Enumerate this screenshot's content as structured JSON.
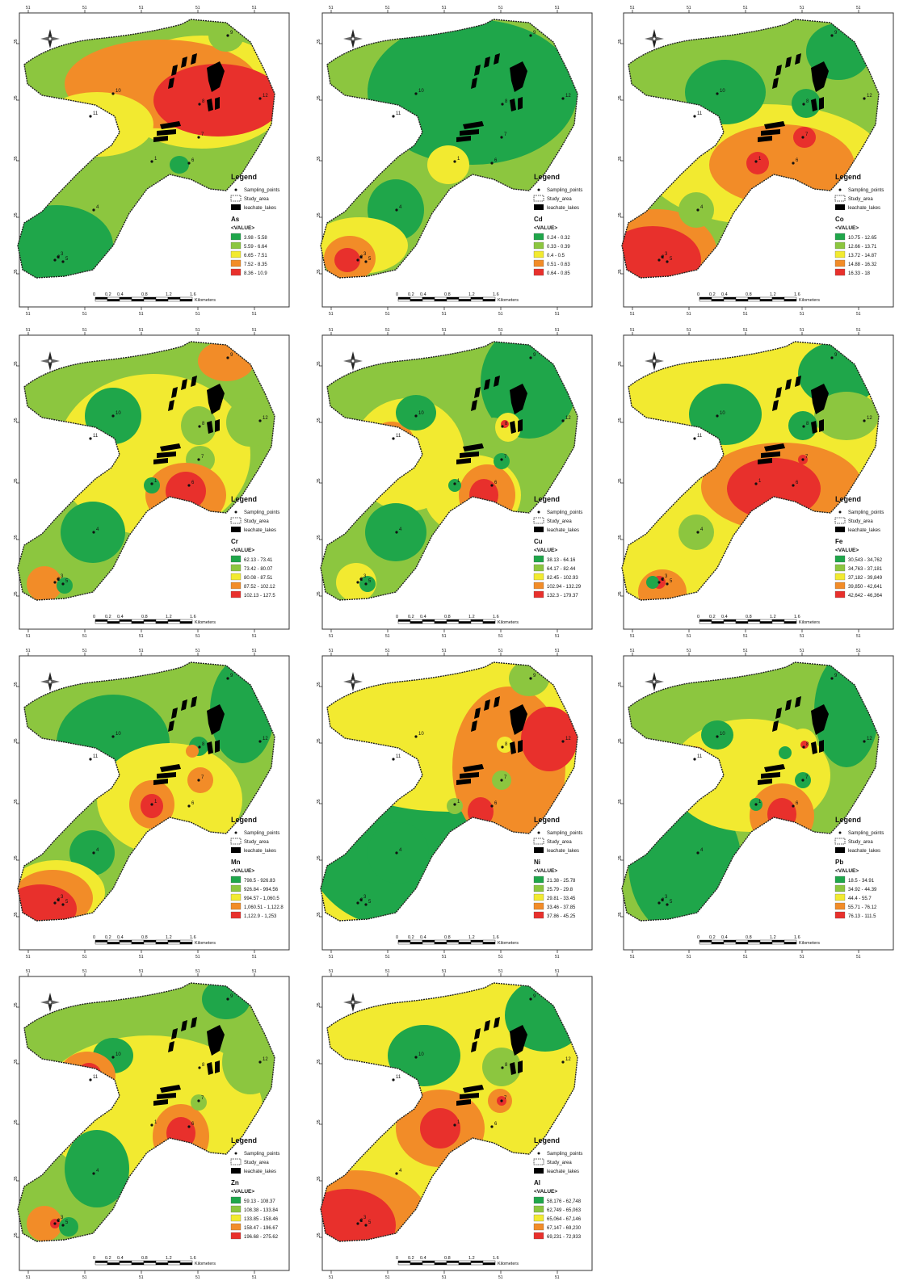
{
  "common": {
    "legend_title": "Legend",
    "legend_sampling": "Sampling_points",
    "legend_study": "Study_area",
    "legend_leachate": "leachate_lakes",
    "value_header": "<VALUE>",
    "scale_ticks": [
      "0",
      "0.2",
      "0.4",
      "0.8",
      "1.2",
      "1.6"
    ],
    "scale_unit": "Kilometers",
    "top_tick_label": "51",
    "side_tick_label": "35",
    "class_colors": [
      "#1fa64a",
      "#8cc63f",
      "#f2ea30",
      "#f28c28",
      "#e8302c"
    ],
    "north_arrow_icon": "north-arrow-icon"
  },
  "maps": [
    {
      "element": "As",
      "classes": [
        "3.98 - 5.58",
        "5.59 - 6.64",
        "6.65 - 7.51",
        "7.52 - 8.35",
        "8.36 - 10.9"
      ]
    },
    {
      "element": "Cd",
      "classes": [
        "0.24 - 0.32",
        "0.33 - 0.39",
        "0.4 - 0.5",
        "0.51 - 0.63",
        "0.64 - 0.85"
      ]
    },
    {
      "element": "Co",
      "classes": [
        "10.75 - 12.65",
        "12.66 - 13.71",
        "13.72 - 14.87",
        "14.88 - 16.32",
        "16.33 - 18"
      ]
    },
    {
      "element": "Cr",
      "classes": [
        "62.13 - 73.41",
        "73.42 - 80.07",
        "80.08 - 87.51",
        "87.52 - 102.12",
        "102.13 - 127.5"
      ]
    },
    {
      "element": "Cu",
      "classes": [
        "38.13 - 64.16",
        "64.17 - 82.44",
        "82.45 - 102.93",
        "102.94 - 132.29",
        "132.3 - 179.37"
      ]
    },
    {
      "element": "Fe",
      "classes": [
        "30,543 - 34,762",
        "34,763 - 37,181",
        "37,182 - 39,849",
        "39,850 - 42,641",
        "42,642 - 46,364"
      ]
    },
    {
      "element": "Mn",
      "classes": [
        "798.5 - 926.83",
        "926.84 - 994.56",
        "994.57 - 1,060.5",
        "1,060.51 - 1,122.8",
        "1,122.9 - 1,253"
      ]
    },
    {
      "element": "Ni",
      "classes": [
        "21.38 - 25.78",
        "25.79 - 29.8",
        "29.81 - 33.45",
        "33.46 - 37.85",
        "37.86 - 45.25"
      ]
    },
    {
      "element": "Pb",
      "classes": [
        "18.5 - 34.91",
        "34.92 - 44.39",
        "44.4 - 55.7",
        "55.71 - 76.12",
        "76.13 - 111.5"
      ]
    },
    {
      "element": "Zn",
      "classes": [
        "59.13 - 108.37",
        "108.38 - 133.84",
        "133.85 - 158.46",
        "158.47 - 196.67",
        "196.68 - 275.62"
      ]
    },
    {
      "element": "Al",
      "classes": [
        "58,176 - 62,748",
        "62,749 - 65,063",
        "65,064 - 67,146",
        "67,147 - 69,230",
        "69,231 - 72,933"
      ]
    }
  ],
  "sampling_points": [
    {
      "id": "1"
    },
    {
      "id": "2"
    },
    {
      "id": "3"
    },
    {
      "id": "4"
    },
    {
      "id": "5"
    },
    {
      "id": "6"
    },
    {
      "id": "7"
    },
    {
      "id": "8"
    },
    {
      "id": "9"
    },
    {
      "id": "10"
    },
    {
      "id": "11"
    },
    {
      "id": "12"
    }
  ]
}
